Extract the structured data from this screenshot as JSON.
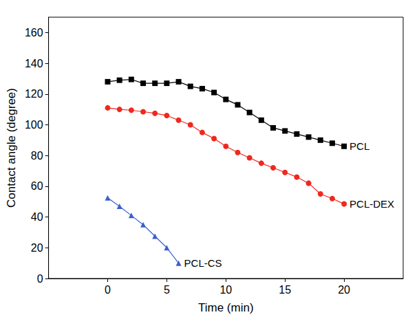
{
  "chart_data": {
    "type": "line",
    "x_label": "Time (min)",
    "y_label": "Contact angle (degree)",
    "xlim": [
      -5,
      25
    ],
    "xticks": [
      0,
      5,
      10,
      15,
      20
    ],
    "ylim": [
      0,
      170
    ],
    "yticks": [
      0,
      20,
      40,
      60,
      80,
      100,
      120,
      140,
      160
    ],
    "grid": false,
    "series": [
      {
        "name": "PCL",
        "color": "#000000",
        "marker": "square",
        "line_style": "solid",
        "x": [
          0,
          1,
          2,
          3,
          4,
          5,
          6,
          7,
          8,
          9,
          10,
          11,
          12,
          13,
          14,
          15,
          16,
          17,
          18,
          19,
          20
        ],
        "values": [
          128,
          129,
          129.5,
          127,
          127,
          127,
          128,
          125,
          123.5,
          121,
          116.5,
          113,
          108,
          103,
          98,
          96,
          94,
          92,
          90,
          88,
          86
        ]
      },
      {
        "name": "PCL-DEX",
        "color": "#f0281e",
        "marker": "circle",
        "line_style": "solid",
        "x": [
          0,
          1,
          2,
          3,
          4,
          5,
          6,
          7,
          8,
          9,
          10,
          11,
          12,
          13,
          14,
          15,
          16,
          17,
          18,
          19,
          20
        ],
        "values": [
          111,
          110,
          109.5,
          108.5,
          107.5,
          106,
          103,
          100,
          95,
          91,
          86,
          82,
          78.5,
          75,
          72,
          69,
          66,
          62,
          55,
          52,
          48.5
        ]
      },
      {
        "name": "PCL-CS",
        "color": "#3a5fcd",
        "marker": "triangle",
        "line_style": "solid",
        "x": [
          0,
          1,
          2,
          3,
          4,
          5,
          6
        ],
        "values": [
          52.5,
          47,
          41,
          35,
          27.5,
          20,
          10
        ]
      }
    ]
  }
}
